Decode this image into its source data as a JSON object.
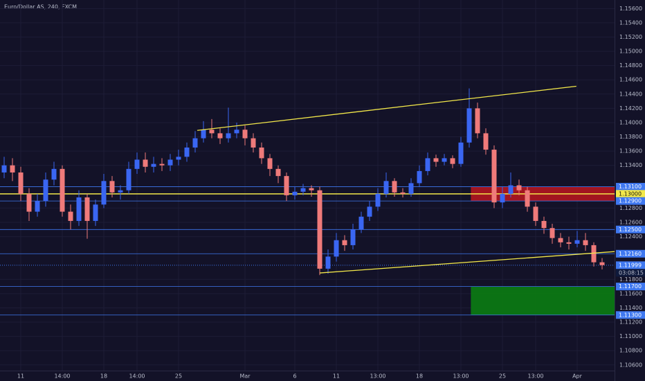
{
  "chart_data": {
    "type": "candlestick",
    "title": "Euro/Dollar AS, 240, FXCM",
    "categories": [
      null,
      null,
      "11",
      null,
      null,
      null,
      null,
      "14:00",
      null,
      null,
      null,
      null,
      "18",
      null,
      null,
      null,
      "14:00",
      null,
      null,
      null,
      null,
      "25",
      null,
      null,
      null,
      null,
      null,
      null,
      null,
      "Mar",
      null,
      null,
      null,
      null,
      null,
      "6",
      null,
      null,
      null,
      null,
      "11",
      null,
      null,
      null,
      null,
      "13:00",
      null,
      null,
      null,
      null,
      "18",
      null,
      null,
      null,
      null,
      "13:00",
      null,
      null,
      null,
      null,
      "25",
      null,
      null,
      null,
      "13:00",
      null,
      null,
      null,
      null,
      "Apr",
      null,
      null,
      null
    ],
    "open": [
      1.133,
      1.134,
      1.133,
      1.13,
      1.1275,
      1.129,
      1.132,
      1.1335,
      1.1275,
      1.1262,
      1.1295,
      1.1262,
      1.1285,
      1.1318,
      1.1302,
      1.1305,
      1.1335,
      1.1348,
      1.1338,
      1.1342,
      1.134,
      1.1348,
      1.1352,
      1.1365,
      1.1378,
      1.139,
      1.1385,
      1.1378,
      1.1385,
      1.139,
      1.1378,
      1.1365,
      1.135,
      1.1335,
      1.1325,
      1.1298,
      1.1303,
      1.1308,
      1.1305,
      1.1195,
      1.1212,
      1.1235,
      1.1228,
      1.125,
      1.1268,
      1.1282,
      1.13,
      1.1318,
      1.1302,
      1.13,
      1.1315,
      1.1332,
      1.135,
      1.1345,
      1.135,
      1.1342,
      1.1372,
      1.142,
      1.1385,
      1.1362,
      1.1288,
      1.13,
      1.1312,
      1.1305,
      1.1282,
      1.1262,
      1.1252,
      1.1238,
      1.1232,
      1.123,
      1.1235,
      1.1228,
      1.1204
    ],
    "high": [
      1.1352,
      1.135,
      1.1338,
      1.1308,
      1.13,
      1.133,
      1.1345,
      1.134,
      1.1285,
      1.1305,
      1.13,
      1.1292,
      1.1328,
      1.1325,
      1.1312,
      1.1345,
      1.1358,
      1.1358,
      1.1352,
      1.135,
      1.1356,
      1.1362,
      1.1372,
      1.1388,
      1.1402,
      1.1405,
      1.1392,
      1.1421,
      1.14,
      1.1396,
      1.1385,
      1.1372,
      1.1356,
      1.134,
      1.133,
      1.131,
      1.1314,
      1.1312,
      1.131,
      1.1222,
      1.1245,
      1.1242,
      1.1258,
      1.1275,
      1.129,
      1.1308,
      1.133,
      1.1322,
      1.1308,
      1.1322,
      1.134,
      1.1358,
      1.1355,
      1.1356,
      1.1354,
      1.138,
      1.1448,
      1.1428,
      1.1392,
      1.1368,
      1.131,
      1.133,
      1.132,
      1.131,
      1.1288,
      1.1268,
      1.1258,
      1.1245,
      1.124,
      1.1248,
      1.1245,
      1.1232,
      1.121
    ],
    "low": [
      1.1322,
      1.1318,
      1.129,
      1.1262,
      1.1268,
      1.1282,
      1.1312,
      1.1268,
      1.125,
      1.1255,
      1.1237,
      1.1255,
      1.128,
      1.1295,
      1.1292,
      1.13,
      1.1328,
      1.133,
      1.133,
      1.1332,
      1.1332,
      1.134,
      1.1345,
      1.1358,
      1.1372,
      1.1378,
      1.137,
      1.1372,
      1.1378,
      1.1368,
      1.1358,
      1.1342,
      1.1325,
      1.1315,
      1.129,
      1.1292,
      1.1298,
      1.1296,
      1.1186,
      1.1188,
      1.1205,
      1.122,
      1.1222,
      1.1245,
      1.1262,
      1.1276,
      1.1295,
      1.1296,
      1.1295,
      1.1296,
      1.131,
      1.1326,
      1.1338,
      1.134,
      1.1336,
      1.1338,
      1.1365,
      1.1378,
      1.1355,
      1.128,
      1.128,
      1.1295,
      1.1298,
      1.1275,
      1.1255,
      1.1244,
      1.123,
      1.1225,
      1.1222,
      1.1225,
      1.122,
      1.1198,
      1.1194
    ],
    "close": [
      1.134,
      1.133,
      1.13,
      1.1275,
      1.129,
      1.132,
      1.1335,
      1.1275,
      1.1262,
      1.1295,
      1.1262,
      1.1285,
      1.1318,
      1.1302,
      1.1305,
      1.1335,
      1.1348,
      1.1338,
      1.1342,
      1.134,
      1.1348,
      1.1352,
      1.1365,
      1.1378,
      1.139,
      1.1385,
      1.1378,
      1.1385,
      1.139,
      1.1378,
      1.1365,
      1.135,
      1.1335,
      1.1325,
      1.1298,
      1.1303,
      1.1308,
      1.1305,
      1.1195,
      1.1212,
      1.1235,
      1.1228,
      1.125,
      1.1268,
      1.1282,
      1.13,
      1.1318,
      1.1302,
      1.13,
      1.1315,
      1.1332,
      1.135,
      1.1345,
      1.135,
      1.1342,
      1.1372,
      1.142,
      1.1385,
      1.1362,
      1.1288,
      1.13,
      1.1312,
      1.1305,
      1.1282,
      1.1262,
      1.1252,
      1.1238,
      1.1232,
      1.123,
      1.1235,
      1.1228,
      1.1204,
      1.12
    ],
    "up_color": "#3a66f2",
    "down_color": "#ef7a7a",
    "ylim": [
      1.1052,
      1.1572
    ],
    "yticks": [
      {
        "value": 1.156,
        "label": "1.15600"
      },
      {
        "value": 1.154,
        "label": "1.15400"
      },
      {
        "value": 1.152,
        "label": "1.15200"
      },
      {
        "value": 1.15,
        "label": "1.15000"
      },
      {
        "value": 1.148,
        "label": "1.14800"
      },
      {
        "value": 1.146,
        "label": "1.14600"
      },
      {
        "value": 1.144,
        "label": "1.14400"
      },
      {
        "value": 1.142,
        "label": "1.14200"
      },
      {
        "value": 1.14,
        "label": "1.14000"
      },
      {
        "value": 1.138,
        "label": "1.13800"
      },
      {
        "value": 1.136,
        "label": "1.13600"
      },
      {
        "value": 1.134,
        "label": "1.13400"
      },
      {
        "value": 1.128,
        "label": "1.12800"
      },
      {
        "value": 1.126,
        "label": "1.12600"
      },
      {
        "value": 1.124,
        "label": "1.12400"
      },
      {
        "value": 1.118,
        "label": "1.11800"
      },
      {
        "value": 1.116,
        "label": "1.11600"
      },
      {
        "value": 1.114,
        "label": "1.11400"
      },
      {
        "value": 1.112,
        "label": "1.11200"
      },
      {
        "value": 1.11,
        "label": "1.11000"
      },
      {
        "value": 1.108,
        "label": "1.10800"
      },
      {
        "value": 1.106,
        "label": "1.10600"
      }
    ],
    "grid": true,
    "levels": [
      {
        "value": 1.131,
        "label": "1.13100",
        "color": "#3f78f0"
      },
      {
        "value": 1.13,
        "label": "1.13000",
        "color": "#f3e84a"
      },
      {
        "value": 1.129,
        "label": "1.12900",
        "color": "#3f78f0"
      },
      {
        "value": 1.125,
        "label": "1.12500",
        "color": "#3f78f0"
      },
      {
        "value": 1.1216,
        "label": "1.12160",
        "color": "#3f78f0"
      },
      {
        "value": 1.117,
        "label": "1.11700",
        "color": "#3f78f0"
      },
      {
        "value": 1.113,
        "label": "1.11300",
        "color": "#3f78f0"
      }
    ],
    "current_price": {
      "value": 1.11999,
      "label": "1.11999",
      "countdown": "03:08:15",
      "color": "#3f78f0"
    },
    "zones": [
      {
        "from": 1.131,
        "to": 1.129,
        "start": 56.2,
        "color": "#b3161f"
      },
      {
        "from": 1.117,
        "to": 1.113,
        "start": 56.2,
        "color": "#0b7d12"
      }
    ],
    "trendlines": [
      {
        "from": [
          23.25,
          1.1389
        ],
        "to": [
          68.9,
          1.1451
        ],
        "color": "#f3e84a"
      },
      {
        "from": [
          38,
          1.1189
        ],
        "to": [
          73.5,
          1.1219
        ],
        "color": "#f3e84a"
      }
    ]
  }
}
